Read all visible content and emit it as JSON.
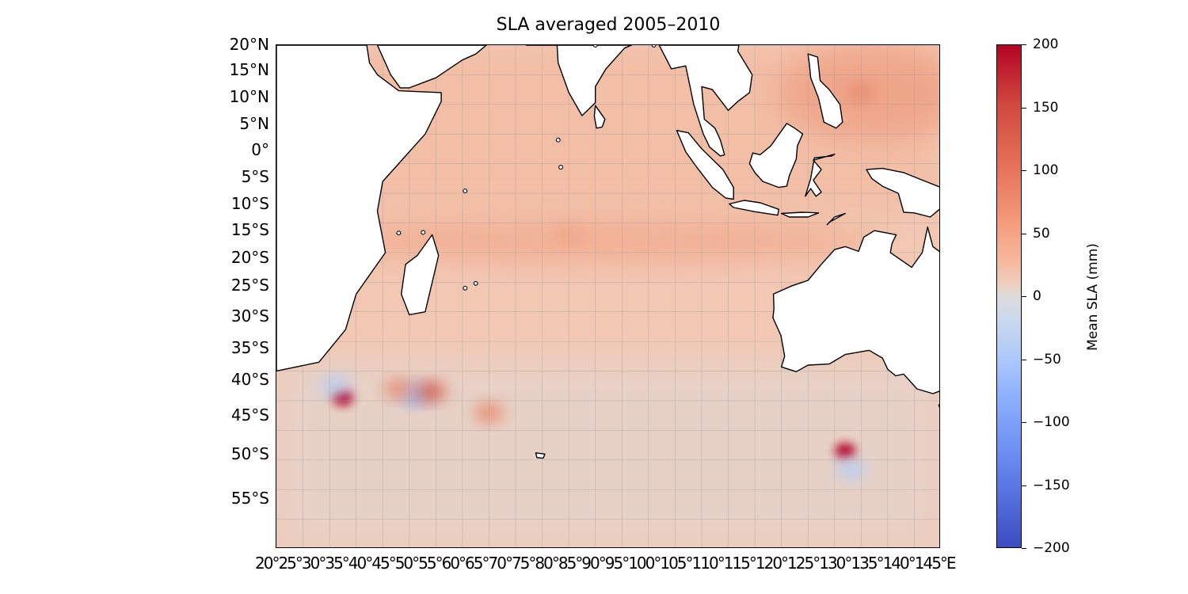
{
  "title": "SLA averaged 2005–2010",
  "map": {
    "projection": "PlateCarree",
    "lon_range": [
      20,
      145
    ],
    "lat_range": [
      -65,
      20
    ],
    "gridlines": true,
    "coastlines": true,
    "colormap": "coolwarm",
    "ocean_base_color": "#f2c8b3",
    "land_color": "#ffffff",
    "lat_labels": [
      "20°N",
      "15°N",
      "10°N",
      "5°N",
      "0°",
      "5°S",
      "10°S",
      "15°S",
      "20°S",
      "25°S",
      "30°S",
      "35°S",
      "40°S",
      "45°S",
      "50°S",
      "55°S"
    ],
    "lon_axis_text": "20°25°30°35°40°45°50°55°60°65°70°75°80°85°90°95°100°105°110°115°120°125°130°135°140°145°E"
  },
  "colorbar": {
    "label": "Mean SLA (mm)",
    "range": [
      -200,
      200
    ],
    "ticks": [
      "200",
      "150",
      "100",
      "50",
      "0",
      "−50",
      "−100",
      "−150",
      "−200"
    ]
  },
  "chart_data": {
    "type": "heatmap",
    "title": "SLA averaged 2005–2010",
    "xlim": [
      20,
      145
    ],
    "ylim": [
      -65,
      20
    ],
    "zlim": [
      -200,
      200
    ],
    "zlabel": "Mean SLA (mm)",
    "features": [
      {
        "lon": 32.5,
        "lat": -39.5,
        "value": 200
      },
      {
        "lon": 31,
        "lat": -37.5,
        "value": -60
      },
      {
        "lon": 46,
        "lat": -39,
        "value": -90
      },
      {
        "lon": 49,
        "lat": -38.5,
        "value": 120
      },
      {
        "lon": 43,
        "lat": -38,
        "value": 100
      },
      {
        "lon": 60,
        "lat": -42,
        "value": 100
      },
      {
        "lon": 127,
        "lat": -48.5,
        "value": 180
      },
      {
        "lon": 128,
        "lat": -51.5,
        "value": -60
      },
      {
        "lon": 130,
        "lat": 12,
        "value": 90
      },
      {
        "lon": 75,
        "lat": -12,
        "value": 70
      }
    ]
  }
}
